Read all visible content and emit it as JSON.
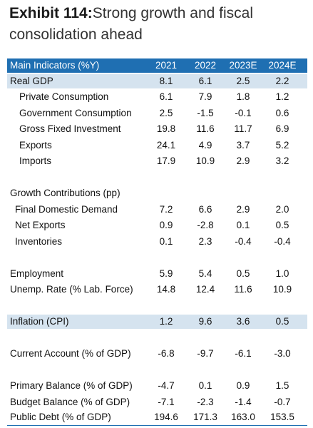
{
  "title": {
    "label": "Exhibit 114:",
    "text": "Strong growth and fiscal consolidation ahead"
  },
  "table": {
    "columns": [
      "Main Indicators (%Y)",
      "2021",
      "2022",
      "2023E",
      "2024E"
    ],
    "rows": [
      {
        "label": "Real GDP",
        "values": [
          "8.1",
          "6.1",
          "2.5",
          "2.2"
        ]
      },
      {
        "label": "Private Consumption",
        "values": [
          "6.1",
          "7.9",
          "1.8",
          "1.2"
        ]
      },
      {
        "label": "Government Consumption",
        "values": [
          "2.5",
          "-1.5",
          "-0.1",
          "0.6"
        ]
      },
      {
        "label": "Gross Fixed Investment",
        "values": [
          "19.8",
          "11.6",
          "11.7",
          "6.9"
        ]
      },
      {
        "label": "Exports",
        "values": [
          "24.1",
          "4.9",
          "3.7",
          "5.2"
        ]
      },
      {
        "label": "Imports",
        "values": [
          "17.9",
          "10.9",
          "2.9",
          "3.2"
        ]
      },
      {
        "label": "Growth Contributions (pp)",
        "values": [
          "",
          "",
          "",
          ""
        ]
      },
      {
        "label": "Final Domestic Demand",
        "values": [
          "7.2",
          "6.6",
          "2.9",
          "2.0"
        ]
      },
      {
        "label": "Net Exports",
        "values": [
          "0.9",
          "-2.8",
          "0.1",
          "0.5"
        ]
      },
      {
        "label": "Inventories",
        "values": [
          "0.1",
          "2.3",
          "-0.4",
          "-0.4"
        ]
      },
      {
        "label": "Employment",
        "values": [
          "5.9",
          "5.4",
          "0.5",
          "1.0"
        ]
      },
      {
        "label": "Unemp. Rate (% Lab. Force)",
        "values": [
          "14.8",
          "12.4",
          "11.6",
          "10.9"
        ]
      },
      {
        "label": "Inflation (CPI)",
        "values": [
          "1.2",
          "9.6",
          "3.6",
          "0.5"
        ]
      },
      {
        "label": "Current Account (% of GDP)",
        "values": [
          "-6.8",
          "-9.7",
          "-6.1",
          "-3.0"
        ]
      },
      {
        "label": "Primary Balance (% of GDP)",
        "values": [
          "-4.7",
          "0.1",
          "0.9",
          "1.5"
        ]
      },
      {
        "label": "Budget Balance (% of GDP)",
        "values": [
          "-7.1",
          "-2.3",
          "-1.4",
          "-0.7"
        ]
      },
      {
        "label": "Public Debt (% of GDP)",
        "values": [
          "194.6",
          "171.3",
          "163.0",
          "153.5"
        ]
      }
    ]
  },
  "colors": {
    "header_bg": "#1f6fb2",
    "shade_bg": "#d5e3ef"
  }
}
